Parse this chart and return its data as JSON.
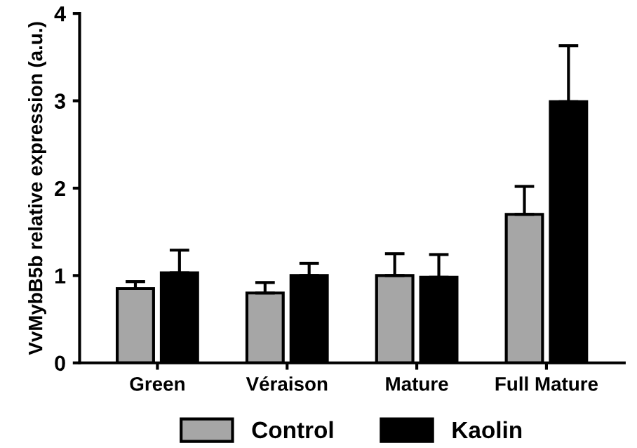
{
  "chart_data": {
    "type": "bar",
    "ylabel": "VvMybB5b relative expression (a.u.)",
    "categories": [
      "Green",
      "Véraison",
      "Mature",
      "Full Mature"
    ],
    "series": [
      {
        "name": "Control",
        "color": "#a6a6a6",
        "values": [
          0.85,
          0.8,
          1.0,
          1.7
        ],
        "errors": [
          [
            0.85,
            0.93
          ],
          [
            0.8,
            0.92
          ],
          [
            1.0,
            1.25
          ],
          [
            1.7,
            2.02
          ]
        ]
      },
      {
        "name": "Kaolin",
        "color": "#000000",
        "values": [
          1.03,
          1.0,
          0.98,
          2.99
        ],
        "errors": [
          [
            1.03,
            1.29
          ],
          [
            1.0,
            1.14
          ],
          [
            0.98,
            1.24
          ],
          [
            2.99,
            3.63
          ]
        ]
      }
    ],
    "ylim": [
      0,
      4
    ],
    "yticks": [
      0,
      1,
      2,
      3,
      4
    ],
    "grid": false,
    "legend": "bottom"
  }
}
